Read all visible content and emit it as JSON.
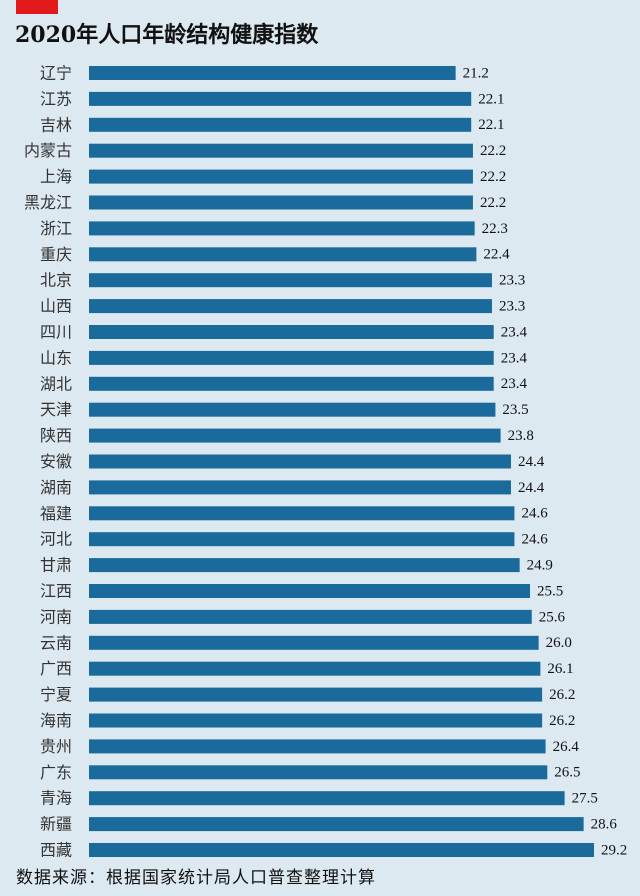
{
  "chart_data": {
    "type": "bar",
    "orientation": "horizontal",
    "title": "2020年人口年龄结构健康指数",
    "categories": [
      "辽宁",
      "江苏",
      "吉林",
      "内蒙古",
      "上海",
      "黑龙江",
      "浙江",
      "重庆",
      "北京",
      "山西",
      "四川",
      "山东",
      "湖北",
      "天津",
      "陕西",
      "安徽",
      "湖南",
      "福建",
      "河北",
      "甘肃",
      "江西",
      "河南",
      "云南",
      "广西",
      "宁夏",
      "海南",
      "贵州",
      "广东",
      "青海",
      "新疆",
      "西藏"
    ],
    "values": [
      21.2,
      22.1,
      22.1,
      22.2,
      22.2,
      22.2,
      22.3,
      22.4,
      23.3,
      23.3,
      23.4,
      23.4,
      23.4,
      23.5,
      23.8,
      24.4,
      24.4,
      24.6,
      24.6,
      24.9,
      25.5,
      25.6,
      26.0,
      26.1,
      26.2,
      26.2,
      26.4,
      26.5,
      27.5,
      28.6,
      29.2
    ],
    "value_labels": [
      "21.2",
      "22.1",
      "22.1",
      "22.2",
      "22.2",
      "22.2",
      "22.3",
      "22.4",
      "23.3",
      "23.3",
      "23.4",
      "23.4",
      "23.4",
      "23.5",
      "23.8",
      "24.4",
      "24.4",
      "24.6",
      "24.6",
      "24.9",
      "25.5",
      "25.6",
      "26.0",
      "26.1",
      "26.2",
      "26.2",
      "26.4",
      "26.5",
      "27.5",
      "28.6",
      "29.2"
    ],
    "xlim": [
      0,
      29.2
    ],
    "grid": false,
    "legend": "none",
    "colors": {
      "bar": "#1a6b9b",
      "background": "#dce9f1",
      "accent": "#e31a1c",
      "text": "#111111",
      "category_text": "#333333"
    }
  },
  "source": "数据来源：根据国家统计局人口普查整理计算"
}
